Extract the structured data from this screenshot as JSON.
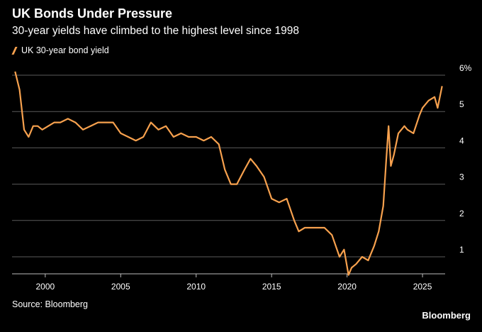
{
  "header": {
    "title": "UK Bonds Under Pressure",
    "subtitle": "30-year yields have climbed to the highest level since 1998"
  },
  "footer": {
    "source": "Source: Bloomberg",
    "brand": "Bloomberg"
  },
  "colors": {
    "background": "#000000",
    "line": "#F7A14E",
    "grid": "#5a5a5a",
    "text": "#ffffff"
  },
  "chart_data": {
    "type": "line",
    "title": "UK Bonds Under Pressure",
    "subtitle": "30-year yields have climbed to the highest level since 1998",
    "xlabel": "",
    "ylabel": "",
    "xlim": [
      1997.8,
      2026.5
    ],
    "ylim": [
      0,
      6
    ],
    "y_ticks": [
      1,
      2,
      3,
      4,
      5,
      6
    ],
    "y_tick_labels": [
      "1",
      "2",
      "3",
      "4",
      "5",
      "6%"
    ],
    "y_axis_position": "right",
    "x_ticks": [
      2000,
      2005,
      2010,
      2015,
      2020,
      2025
    ],
    "x_tick_labels": [
      "2000",
      "2005",
      "2010",
      "2015",
      "2020",
      "2025"
    ],
    "grid": "horizontal",
    "legend": "top-left",
    "series": [
      {
        "name": "UK 30-year bond yield",
        "x": [
          1998.0,
          1998.3,
          1998.6,
          1998.9,
          1999.2,
          1999.5,
          1999.8,
          2000.2,
          2000.6,
          2001.0,
          2001.5,
          2002.0,
          2002.5,
          2003.0,
          2003.5,
          2004.0,
          2004.5,
          2005.0,
          2005.5,
          2006.0,
          2006.5,
          2007.0,
          2007.5,
          2008.0,
          2008.5,
          2009.0,
          2009.5,
          2010.0,
          2010.5,
          2011.0,
          2011.5,
          2011.9,
          2012.3,
          2012.7,
          2013.2,
          2013.6,
          2014.0,
          2014.5,
          2015.0,
          2015.5,
          2016.0,
          2016.5,
          2016.8,
          2017.2,
          2017.6,
          2018.0,
          2018.5,
          2019.0,
          2019.5,
          2019.8,
          2020.1,
          2020.3,
          2020.6,
          2021.0,
          2021.4,
          2021.8,
          2022.1,
          2022.4,
          2022.6,
          2022.75,
          2022.9,
          2023.1,
          2023.4,
          2023.8,
          2024.0,
          2024.4,
          2024.8,
          2025.0,
          2025.4,
          2025.8,
          2026.0,
          2026.3
        ],
        "y": [
          6.1,
          5.6,
          4.5,
          4.3,
          4.6,
          4.6,
          4.5,
          4.6,
          4.7,
          4.7,
          4.8,
          4.7,
          4.5,
          4.6,
          4.7,
          4.7,
          4.7,
          4.4,
          4.3,
          4.2,
          4.3,
          4.7,
          4.5,
          4.6,
          4.3,
          4.4,
          4.3,
          4.3,
          4.2,
          4.3,
          4.1,
          3.4,
          3.0,
          3.0,
          3.4,
          3.7,
          3.5,
          3.2,
          2.6,
          2.5,
          2.6,
          2.0,
          1.7,
          1.8,
          1.8,
          1.8,
          1.8,
          1.6,
          1.0,
          1.2,
          0.5,
          0.7,
          0.8,
          1.0,
          0.9,
          1.3,
          1.7,
          2.4,
          3.7,
          4.6,
          3.5,
          3.8,
          4.4,
          4.6,
          4.5,
          4.4,
          4.9,
          5.1,
          5.3,
          5.4,
          5.1,
          5.7
        ]
      }
    ]
  }
}
